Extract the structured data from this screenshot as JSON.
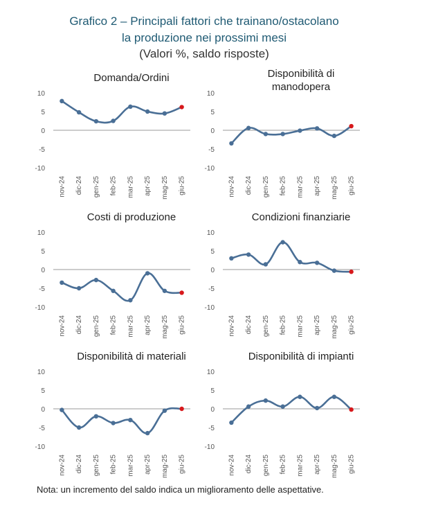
{
  "title_line1": "Grafico 2 – Principali fattori che trainano/ostacolano",
  "title_line2": "la produzione nei prossimi mesi",
  "title_line3": "(Valori %, saldo risposte)",
  "note": "Nota: un incremento del saldo indica un miglioramento delle aspettative.",
  "colors": {
    "line": "#4a6f96",
    "last_point": "#d7191c",
    "axis": "#999999",
    "text": "#555555"
  },
  "chart_data": [
    {
      "type": "line",
      "title": [
        "Domanda/Ordini"
      ],
      "categories": [
        "nov-24",
        "dic-24",
        "gen-25",
        "feb-25",
        "mar-25",
        "apr-25",
        "mag-25",
        "giu-25"
      ],
      "series": [
        {
          "values": [
            7.8,
            4.8,
            2.4,
            2.5,
            6.3,
            5.0,
            4.5,
            6.2
          ]
        }
      ],
      "ylim": [
        -10,
        10
      ],
      "yticks": [
        "10",
        "5",
        "0",
        "-5",
        "-10"
      ]
    },
    {
      "type": "line",
      "title": [
        "Disponibilità di",
        "manodopera"
      ],
      "categories": [
        "nov-24",
        "dic-24",
        "gen-25",
        "feb-25",
        "mar-25",
        "apr-25",
        "mag-25",
        "giu-25"
      ],
      "series": [
        {
          "values": [
            -3.5,
            0.6,
            -1.0,
            -1.0,
            -0.1,
            0.5,
            -1.5,
            1.1
          ]
        }
      ],
      "ylim": [
        -10,
        10
      ],
      "yticks": [
        "10",
        "5",
        "0",
        "-5",
        "-10"
      ]
    },
    {
      "type": "line",
      "title": [
        "Costi di produzione"
      ],
      "categories": [
        "nov-24",
        "dic-24",
        "gen-25",
        "feb-25",
        "mar-25",
        "apr-25",
        "mag-25",
        "giu-25"
      ],
      "series": [
        {
          "values": [
            -3.5,
            -5.0,
            -2.8,
            -5.7,
            -8.2,
            -1.0,
            -5.7,
            -6.2
          ]
        }
      ],
      "ylim": [
        -10,
        10
      ],
      "yticks": [
        "10",
        "5",
        "0",
        "-5",
        "-10"
      ]
    },
    {
      "type": "line",
      "title": [
        "Condizioni finanziarie"
      ],
      "categories": [
        "nov-24",
        "dic-24",
        "gen-25",
        "feb-25",
        "mar-25",
        "apr-25",
        "mag-25",
        "giu-25"
      ],
      "series": [
        {
          "values": [
            3.0,
            4.0,
            1.4,
            7.3,
            2.0,
            1.8,
            -0.3,
            -0.6
          ]
        }
      ],
      "ylim": [
        -10,
        10
      ],
      "yticks": [
        "10",
        "5",
        "0",
        "-5",
        "-10"
      ]
    },
    {
      "type": "line",
      "title": [
        "Disponibilità di materiali"
      ],
      "categories": [
        "nov-24",
        "dic-24",
        "gen-25",
        "feb-25",
        "mar-25",
        "apr-25",
        "mag-25",
        "giu-25"
      ],
      "series": [
        {
          "values": [
            -0.3,
            -5.0,
            -2.0,
            -3.8,
            -3.0,
            -6.5,
            -0.5,
            0.0
          ]
        }
      ],
      "ylim": [
        -10,
        10
      ],
      "yticks": [
        "10",
        "5",
        "0",
        "-5",
        "-10"
      ]
    },
    {
      "type": "line",
      "title": [
        "Disponibilità di impianti"
      ],
      "categories": [
        "nov-24",
        "dic-24",
        "gen-25",
        "feb-25",
        "mar-25",
        "apr-25",
        "mag-25",
        "giu-25"
      ],
      "series": [
        {
          "values": [
            -3.7,
            0.6,
            2.2,
            0.6,
            3.2,
            0.2,
            3.2,
            -0.2
          ]
        }
      ],
      "ylim": [
        -10,
        10
      ],
      "yticks": [
        "10",
        "5",
        "0",
        "-5",
        "-10"
      ]
    }
  ]
}
